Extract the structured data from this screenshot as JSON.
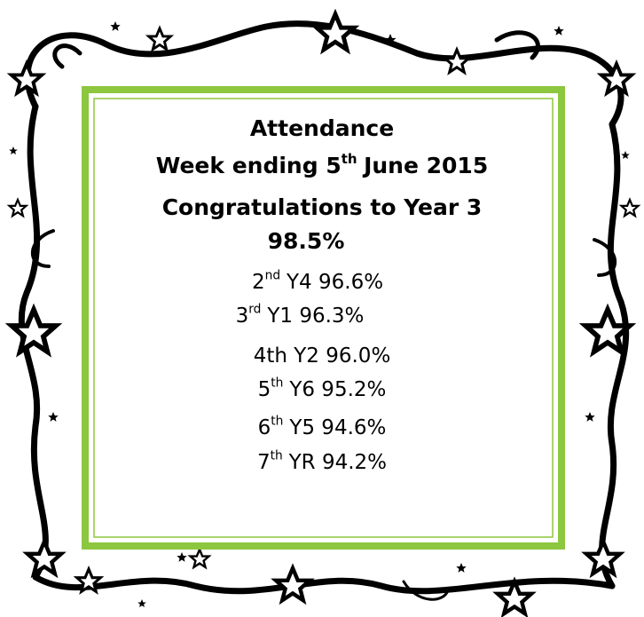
{
  "title": "Attendance",
  "week": {
    "before": "Week ending 5",
    "sup": "th",
    "after": "June 2015"
  },
  "congratulations": "Congratulations to Year 3",
  "winner_score": "98.5%",
  "rankings": [
    {
      "place": "2",
      "suffix": "nd",
      "text": "Y4 96.6%"
    },
    {
      "place": "3",
      "suffix": "rd",
      "text": "Y1 96.3%"
    },
    {
      "text": "4th Y2 96.0%"
    },
    {
      "place": "5",
      "suffix": "th",
      "text": "Y6 95.2%"
    },
    {
      "place": "6",
      "suffix": "th",
      "text": "Y5 94.6%"
    },
    {
      "place": "7",
      "suffix": "th",
      "text": "YR 94.2%"
    }
  ]
}
